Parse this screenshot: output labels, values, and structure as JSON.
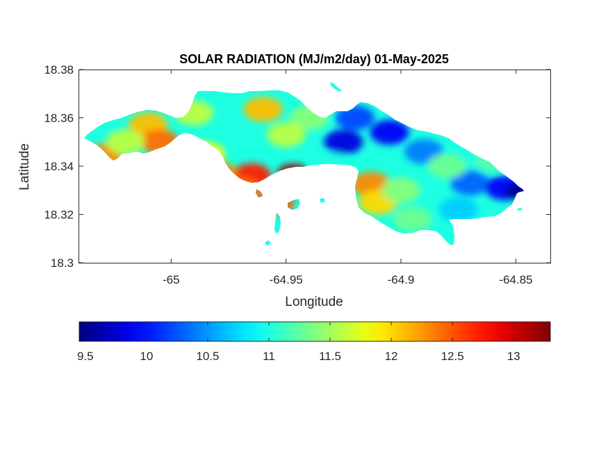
{
  "chart_data": {
    "type": "heatmap",
    "title": "SOLAR RADIATION (MJ/m2/day) 01-May-2025",
    "xlabel": "Longitude",
    "ylabel": "Latitude",
    "xlim": [
      -65.04,
      -64.835
    ],
    "ylim": [
      18.3,
      18.38
    ],
    "xticks": [
      -65,
      -64.95,
      -64.9,
      -64.85
    ],
    "xtick_labels": [
      "-65",
      "-64.95",
      "-64.9",
      "-64.85"
    ],
    "yticks": [
      18.3,
      18.32,
      18.34,
      18.36,
      18.38
    ],
    "ytick_labels": [
      "18.3",
      "18.32",
      "18.34",
      "18.36",
      "18.38"
    ],
    "colormap": "jet",
    "colorbar": {
      "range": [
        9.45,
        13.3
      ],
      "ticks": [
        9.5,
        10,
        10.5,
        11,
        11.5,
        12,
        12.5,
        13
      ],
      "tick_labels": [
        "9.5",
        "10",
        "10.5",
        "11",
        "11.5",
        "12",
        "12.5",
        "13"
      ],
      "placement": "bottom"
    },
    "grid": false,
    "hotspots": [
      {
        "lon": -64.947,
        "lat": 18.3375,
        "value": 13.2
      },
      {
        "lon": -64.965,
        "lat": 18.336,
        "value": 12.7
      },
      {
        "lon": -64.98,
        "lat": 18.337,
        "value": 12.3
      },
      {
        "lon": -64.97,
        "lat": 18.33,
        "value": 12.4
      },
      {
        "lon": -64.955,
        "lat": 18.325,
        "value": 12.5
      },
      {
        "lon": -64.96,
        "lat": 18.3635,
        "value": 12.1
      },
      {
        "lon": -65.01,
        "lat": 18.357,
        "value": 12.1
      },
      {
        "lon": -65.005,
        "lat": 18.35,
        "value": 12.4
      },
      {
        "lon": -65.03,
        "lat": 18.344,
        "value": 12.3
      },
      {
        "lon": -64.913,
        "lat": 18.3325,
        "value": 12.3
      },
      {
        "lon": -64.91,
        "lat": 18.325,
        "value": 12.0
      },
      {
        "lon": -64.92,
        "lat": 18.36,
        "value": 10.2
      },
      {
        "lon": -64.925,
        "lat": 18.35,
        "value": 9.8
      },
      {
        "lon": -64.905,
        "lat": 18.354,
        "value": 9.9
      },
      {
        "lon": -64.89,
        "lat": 18.346,
        "value": 10.4
      },
      {
        "lon": -64.87,
        "lat": 18.333,
        "value": 10.3
      },
      {
        "lon": -64.855,
        "lat": 18.331,
        "value": 9.9
      },
      {
        "lon": -64.848,
        "lat": 18.3295,
        "value": 9.5
      },
      {
        "lon": -64.875,
        "lat": 18.322,
        "value": 10.7
      },
      {
        "lon": -64.99,
        "lat": 18.362,
        "value": 11.6
      },
      {
        "lon": -64.94,
        "lat": 18.36,
        "value": 11.4
      },
      {
        "lon": -64.95,
        "lat": 18.353,
        "value": 11.6
      },
      {
        "lon": -64.9,
        "lat": 18.33,
        "value": 11.4
      },
      {
        "lon": -64.895,
        "lat": 18.318,
        "value": 11.3
      },
      {
        "lon": -65.02,
        "lat": 18.35,
        "value": 11.6
      },
      {
        "lon": -64.93,
        "lat": 18.34,
        "value": 11.0
      },
      {
        "lon": -64.86,
        "lat": 18.343,
        "value": 11.2
      },
      {
        "lon": -64.88,
        "lat": 18.34,
        "value": 11.3
      },
      {
        "lon": -64.985,
        "lat": 18.345,
        "value": 11.8
      }
    ],
    "background_value": 11.0
  }
}
